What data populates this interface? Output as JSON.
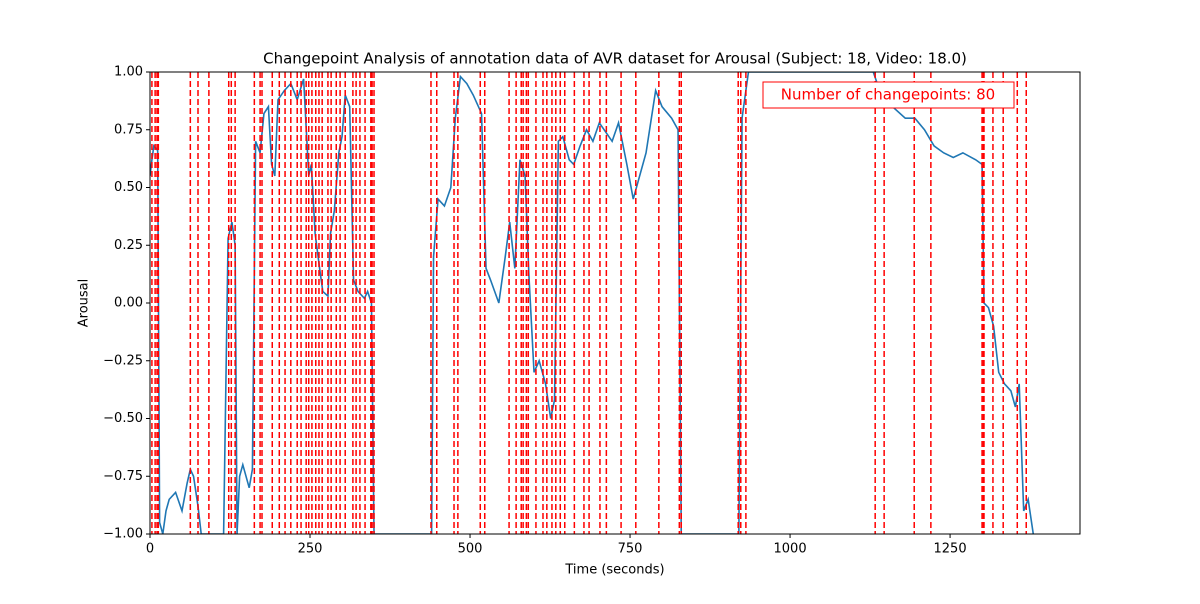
{
  "chart_data": {
    "type": "line",
    "title": "Changepoint Analysis of annotation data of AVR dataset for Arousal (Subject: 18, Video: 18.0)",
    "x_label": "Time (seconds)",
    "y_label": "Arousal",
    "annotation": "Number of changepoints: 80",
    "xlim": [
      0,
      1453
    ],
    "ylim": [
      -1,
      1
    ],
    "xticks": [
      0,
      250,
      500,
      750,
      1000,
      1250
    ],
    "yticks": [
      {
        "value": -1,
        "label": "−1.00"
      },
      {
        "value": -0.75,
        "label": "−0.75"
      },
      {
        "value": -0.5,
        "label": "−0.50"
      },
      {
        "value": -0.25,
        "label": "−0.25"
      },
      {
        "value": 0,
        "label": "0.00"
      },
      {
        "value": 0.25,
        "label": "0.25"
      },
      {
        "value": 0.5,
        "label": "0.50"
      },
      {
        "value": 0.75,
        "label": "0.75"
      },
      {
        "value": 1,
        "label": "1.00"
      }
    ],
    "series": [
      {
        "color": "#1f77b4",
        "x": [
          0,
          3,
          6,
          12,
          15,
          20,
          25,
          30,
          40,
          50,
          58,
          63,
          68,
          75,
          80,
          115,
          122,
          128,
          133,
          136,
          140,
          145,
          155,
          160,
          165,
          172,
          178,
          185,
          190,
          195,
          200,
          210,
          220,
          230,
          240,
          248,
          252,
          258,
          265,
          270,
          278,
          282,
          288,
          295,
          300,
          305,
          312,
          318,
          325,
          335,
          340,
          346,
          350,
          440,
          443,
          450,
          460,
          470,
          477,
          485,
          495,
          505,
          518,
          525,
          532,
          545,
          555,
          562,
          570,
          578,
          586,
          592,
          600,
          608,
          618,
          626,
          632,
          638,
          645,
          655,
          662,
          672,
          682,
          692,
          702,
          712,
          722,
          732,
          745,
          755,
          765,
          775,
          790,
          800,
          815,
          825,
          830,
          920,
          925,
          935,
          1000,
          1130,
          1145,
          1160,
          1180,
          1195,
          1210,
          1225,
          1240,
          1255,
          1270,
          1290,
          1300,
          1303,
          1310,
          1318,
          1326,
          1335,
          1345,
          1352,
          1358,
          1365,
          1372,
          1380
        ],
        "values": [
          0.55,
          0.62,
          0.68,
          0.66,
          -0.95,
          -1,
          -0.9,
          -0.85,
          -0.82,
          -0.9,
          -0.78,
          -0.72,
          -0.75,
          -0.88,
          -1,
          -1,
          0.28,
          0.35,
          0.25,
          -1,
          -0.75,
          -0.7,
          -0.8,
          -0.72,
          0.7,
          0.65,
          0.82,
          0.85,
          0.6,
          0.55,
          0.88,
          0.92,
          0.95,
          0.88,
          0.97,
          0.55,
          0.6,
          0.3,
          0.15,
          0.05,
          0.03,
          0.3,
          0.4,
          0.65,
          0.72,
          0.9,
          0.85,
          0.1,
          0.05,
          0.02,
          0.05,
          0.0,
          -1,
          -1,
          0.2,
          0.45,
          0.42,
          0.5,
          0.8,
          0.98,
          0.95,
          0.9,
          0.82,
          0.15,
          0.1,
          0.0,
          0.2,
          0.35,
          0.15,
          0.62,
          0.55,
          0.12,
          -0.3,
          -0.25,
          -0.35,
          -0.5,
          -0.42,
          0.7,
          0.72,
          0.62,
          0.6,
          0.68,
          0.75,
          0.7,
          0.78,
          0.74,
          0.7,
          0.78,
          0.6,
          0.45,
          0.55,
          0.65,
          0.92,
          0.85,
          0.8,
          0.75,
          -1,
          -1,
          0.8,
          1,
          1,
          1,
          0.88,
          0.85,
          0.8,
          0.8,
          0.75,
          0.68,
          0.65,
          0.63,
          0.65,
          0.62,
          0.6,
          0.0,
          -0.02,
          -0.1,
          -0.3,
          -0.35,
          -0.38,
          -0.45,
          -0.35,
          -0.9,
          -0.85,
          -1
        ]
      }
    ],
    "changepoints": {
      "color": "#ff0000",
      "values": [
        3,
        8,
        11,
        13,
        63,
        75,
        92,
        123,
        127,
        133,
        163,
        172,
        175,
        191,
        202,
        211,
        220,
        230,
        236,
        244,
        248,
        253,
        259,
        264,
        269,
        278,
        283,
        291,
        297,
        305,
        317,
        322,
        328,
        336,
        345,
        347,
        350,
        439,
        448,
        475,
        481,
        516,
        523,
        561,
        572,
        580,
        583,
        588,
        591,
        603,
        614,
        620,
        628,
        634,
        641,
        648,
        663,
        678,
        686,
        703,
        713,
        736,
        759,
        795,
        827,
        830,
        919,
        923,
        931,
        1133,
        1147,
        1194,
        1220,
        1300,
        1302,
        1303,
        1317,
        1333,
        1355,
        1369
      ]
    }
  }
}
